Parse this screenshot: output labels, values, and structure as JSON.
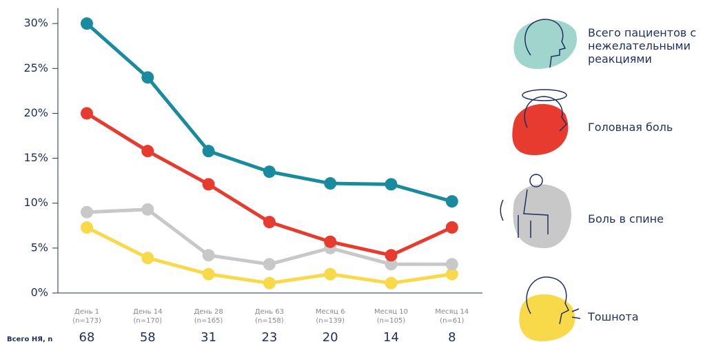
{
  "chart_data": {
    "type": "line",
    "categories": [
      "День 1",
      "День 14",
      "День 28",
      "День 63",
      "Месяц 6",
      "Месяц 10",
      "Месяц 14"
    ],
    "category_notes": [
      "(n=173)",
      "(n=170)",
      "(n=165)",
      "(n=158)",
      "(n=139)",
      "(n=105)",
      "(n=61)"
    ],
    "series": [
      {
        "name": "Всего пациентов с нежелательными реакциями",
        "color": "#1a8a9e",
        "values": [
          30,
          24,
          15.8,
          13.5,
          12.2,
          12.1,
          10.2
        ]
      },
      {
        "name": "Головная боль",
        "color": "#e63b2e",
        "values": [
          20,
          15.8,
          12.1,
          7.9,
          5.7,
          4.2,
          7.3
        ]
      },
      {
        "name": "Боль в спине",
        "color": "#c8c8c8",
        "values": [
          9,
          9.3,
          4.2,
          3.2,
          5,
          3.2,
          3.2
        ]
      },
      {
        "name": "Тошнота",
        "color": "#f7d94a",
        "values": [
          7.3,
          3.9,
          2.1,
          1.1,
          2.1,
          1.1,
          2.1
        ]
      }
    ],
    "ylim": [
      0,
      31.7
    ],
    "yticks": [
      {
        "value": 0,
        "label": "0%"
      },
      {
        "value": 5,
        "label": "5%"
      },
      {
        "value": 10,
        "label": "10%"
      },
      {
        "value": 15,
        "label": "15%"
      },
      {
        "value": 20,
        "label": "20%"
      },
      {
        "value": 25,
        "label": "25%"
      },
      {
        "value": 30,
        "label": "30%"
      }
    ],
    "totals_label": "Всего НЯ, n",
    "totals": [
      68,
      58,
      31,
      23,
      20,
      14,
      8
    ]
  }
}
